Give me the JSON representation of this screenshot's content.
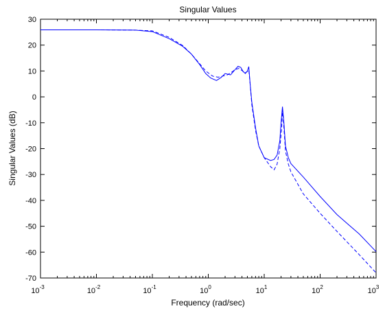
{
  "chart_data": {
    "type": "line",
    "title": "Singular Values",
    "xlabel": "Frequency (rad/sec)",
    "ylabel": "Singular Values (dB)",
    "x_scale": "log",
    "xlim": [
      0.001,
      1000
    ],
    "ylim": [
      -70,
      30
    ],
    "grid": false,
    "x_ticks": [
      {
        "base": "10",
        "exp": "-3",
        "value": 0.001
      },
      {
        "base": "10",
        "exp": "-2",
        "value": 0.01
      },
      {
        "base": "10",
        "exp": "-1",
        "value": 0.1
      },
      {
        "base": "10",
        "exp": "0",
        "value": 1
      },
      {
        "base": "10",
        "exp": "1",
        "value": 10
      },
      {
        "base": "10",
        "exp": "2",
        "value": 100
      },
      {
        "base": "10",
        "exp": "3",
        "value": 1000
      }
    ],
    "y_ticks": [
      "30",
      "20",
      "10",
      "0",
      "-10",
      "-20",
      "-30",
      "-40",
      "-50",
      "-60",
      "-70"
    ],
    "series": [
      {
        "style": "solid",
        "color": "#0000ff",
        "points": [
          [
            0.001,
            25.9
          ],
          [
            0.01,
            25.9
          ],
          [
            0.05,
            25.8
          ],
          [
            0.1,
            25.2
          ],
          [
            0.2,
            22.5
          ],
          [
            0.35,
            19.5
          ],
          [
            0.5,
            16.5
          ],
          [
            0.7,
            12.5
          ],
          [
            0.9,
            9.0
          ],
          [
            1.1,
            7.3
          ],
          [
            1.4,
            6.3
          ],
          [
            1.7,
            7.5
          ],
          [
            2.0,
            9.0
          ],
          [
            2.5,
            8.5
          ],
          [
            3.0,
            10.5
          ],
          [
            3.4,
            11.8
          ],
          [
            3.8,
            11.4
          ],
          [
            4.2,
            9.8
          ],
          [
            4.6,
            9.0
          ],
          [
            5.0,
            10.0
          ],
          [
            5.3,
            11.7
          ],
          [
            5.6,
            5.0
          ],
          [
            6.0,
            -2.0
          ],
          [
            7.0,
            -12.0
          ],
          [
            8.0,
            -19.0
          ],
          [
            10.0,
            -23.5
          ],
          [
            13.0,
            -24.6
          ],
          [
            15.0,
            -24.2
          ],
          [
            17.0,
            -22.5
          ],
          [
            19.0,
            -17.0
          ],
          [
            20.0,
            -10.0
          ],
          [
            21.2,
            -3.8
          ],
          [
            22.5,
            -10.0
          ],
          [
            24.0,
            -19.0
          ],
          [
            27.0,
            -23.5
          ],
          [
            30.0,
            -25.8
          ],
          [
            50.0,
            -31.0
          ],
          [
            100.0,
            -38.5
          ],
          [
            200.0,
            -45.5
          ],
          [
            500.0,
            -53.0
          ],
          [
            1000.0,
            -59.8
          ]
        ]
      },
      {
        "style": "dashed",
        "color": "#0000ff",
        "points": [
          [
            0.001,
            25.9
          ],
          [
            0.01,
            25.9
          ],
          [
            0.05,
            25.8
          ],
          [
            0.1,
            25.5
          ],
          [
            0.2,
            23.0
          ],
          [
            0.35,
            19.8
          ],
          [
            0.5,
            16.5
          ],
          [
            0.7,
            12.8
          ],
          [
            0.9,
            10.0
          ],
          [
            1.2,
            8.0
          ],
          [
            1.5,
            7.6
          ],
          [
            1.8,
            8.0
          ],
          [
            2.2,
            8.5
          ],
          [
            2.6,
            9.5
          ],
          [
            3.0,
            10.5
          ],
          [
            3.5,
            11.0
          ],
          [
            4.0,
            10.2
          ],
          [
            4.5,
            9.2
          ],
          [
            5.0,
            9.8
          ],
          [
            5.3,
            10.4
          ],
          [
            5.6,
            5.0
          ],
          [
            6.0,
            -3.0
          ],
          [
            7.0,
            -13.0
          ],
          [
            8.0,
            -19.0
          ],
          [
            10.0,
            -23.5
          ],
          [
            13.0,
            -27.0
          ],
          [
            15.0,
            -28.2
          ],
          [
            17.0,
            -26.0
          ],
          [
            19.0,
            -20.0
          ],
          [
            20.5,
            -12.0
          ],
          [
            21.3,
            -5.0
          ],
          [
            22.5,
            -12.0
          ],
          [
            24.0,
            -21.0
          ],
          [
            27.0,
            -26.0
          ],
          [
            30.0,
            -29.0
          ],
          [
            50.0,
            -37.5
          ],
          [
            100.0,
            -45.0
          ],
          [
            200.0,
            -52.0
          ],
          [
            500.0,
            -61.0
          ],
          [
            1000.0,
            -68.0
          ]
        ]
      }
    ]
  }
}
